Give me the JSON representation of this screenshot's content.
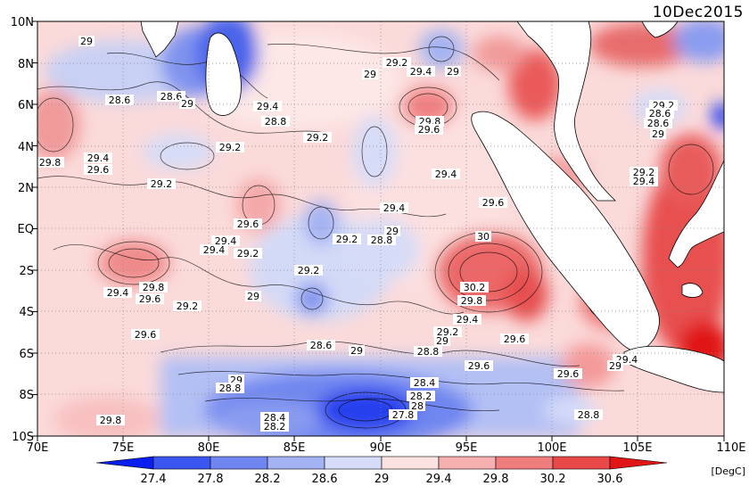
{
  "date": "10Dec2015",
  "unit": "[DegC]",
  "lon_labels": [
    "70E",
    "75E",
    "80E",
    "85E",
    "90E",
    "95E",
    "100E",
    "105E",
    "110E"
  ],
  "lat_labels": [
    "10N",
    "8N",
    "6N",
    "4N",
    "2N",
    "EQ",
    "2S",
    "4S",
    "6S",
    "8S",
    "10S"
  ],
  "colorbar": {
    "labels": [
      "27.4",
      "27.8",
      "28.2",
      "28.6",
      "29",
      "29.4",
      "29.8",
      "30.2",
      "30.6"
    ],
    "colors": [
      "#0a1ef0",
      "#3a55f0",
      "#6f86f0",
      "#a3b2f2",
      "#d6dcf8",
      "#fde2e2",
      "#f6b0b0",
      "#f07d7d",
      "#e84848",
      "#e01616"
    ]
  },
  "contour_labels": {
    "l01": "29",
    "l02": "28.6",
    "l03": "28.6",
    "l04": "29",
    "l05": "29.2",
    "l06": "29.4",
    "l07": "29",
    "l08": "29.8",
    "l09": "29.4",
    "l10": "29.6",
    "l11": "29.2",
    "l12": "29.2",
    "l13": "29.4",
    "l14": "29.4",
    "l15": "29.6",
    "l16": "29.2",
    "l17": "29.8",
    "l18": "29.6",
    "l19": "29.2",
    "l20": "29",
    "l21": "29.6",
    "l22": "29.2",
    "l23": "28.8",
    "l24": "29",
    "l25": "29.4",
    "l26": "29.6",
    "l27": "30",
    "l28": "30.2",
    "l29": "29.8",
    "l30": "29.4",
    "l31": "29.2",
    "l32": "29",
    "l33": "28.8",
    "l34": "29.6",
    "l35": "28.6",
    "l36": "29",
    "l37": "28.4",
    "l38": "28.2",
    "l39": "28",
    "l40": "27.8",
    "l41": "28.4",
    "l42": "28.2",
    "l43": "29.6",
    "l44": "29.4",
    "l45": "29",
    "l46": "28.8",
    "l47": "28.4",
    "l48": "28.6",
    "l49": "28.6",
    "l50": "29",
    "l51": "29.2",
    "l52": "29.4",
    "l53": "29.8",
    "l54": "29",
    "l55": "28.8",
    "l56": "29"
  }
}
